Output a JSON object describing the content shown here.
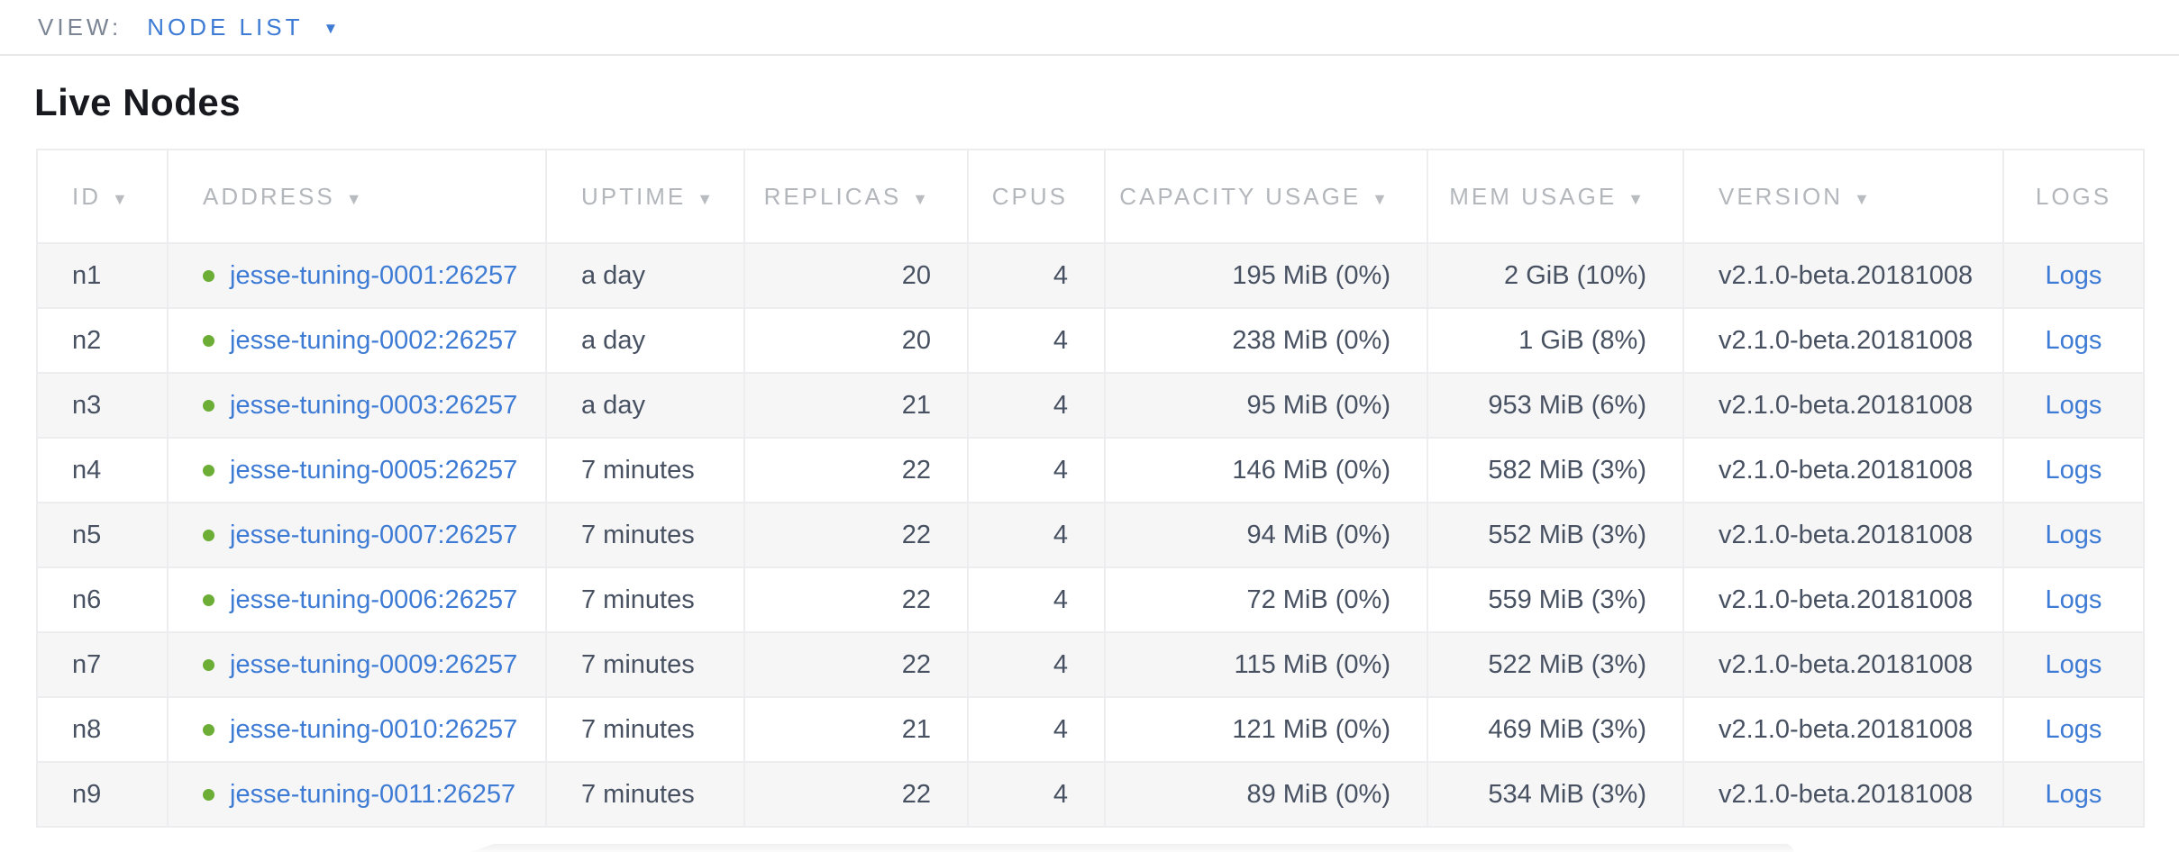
{
  "view_bar": {
    "label": "VIEW:",
    "selected": "NODE LIST"
  },
  "page": {
    "title": "Live Nodes"
  },
  "icons": {
    "caret_down": "▼",
    "sort_desc": "▼",
    "live_dot": "node-live-status"
  },
  "colors": {
    "link_blue": "#3d7bd4",
    "live_green": "#6cae35",
    "header_gray": "#b3b7bc",
    "stripe_gray": "#f6f6f7"
  },
  "table": {
    "columns": [
      {
        "key": "id",
        "label": "ID",
        "sortable": true,
        "align": "left"
      },
      {
        "key": "address",
        "label": "ADDRESS",
        "sortable": true,
        "align": "left"
      },
      {
        "key": "uptime",
        "label": "UPTIME",
        "sortable": true,
        "align": "left"
      },
      {
        "key": "replicas",
        "label": "REPLICAS",
        "sortable": true,
        "align": "right"
      },
      {
        "key": "cpus",
        "label": "CPUS",
        "sortable": false,
        "align": "right"
      },
      {
        "key": "capacity",
        "label": "CAPACITY USAGE",
        "sortable": true,
        "align": "right"
      },
      {
        "key": "mem",
        "label": "MEM USAGE",
        "sortable": true,
        "align": "right"
      },
      {
        "key": "version",
        "label": "VERSION",
        "sortable": true,
        "align": "left"
      },
      {
        "key": "logs",
        "label": "LOGS",
        "sortable": false,
        "align": "center"
      }
    ],
    "rows": [
      {
        "id": "n1",
        "address": "jesse-tuning-0001:26257",
        "uptime": "a day",
        "replicas": "20",
        "cpus": "4",
        "capacity": "195 MiB (0%)",
        "mem": "2 GiB (10%)",
        "version": "v2.1.0-beta.20181008",
        "logs": "Logs"
      },
      {
        "id": "n2",
        "address": "jesse-tuning-0002:26257",
        "uptime": "a day",
        "replicas": "20",
        "cpus": "4",
        "capacity": "238 MiB (0%)",
        "mem": "1 GiB (8%)",
        "version": "v2.1.0-beta.20181008",
        "logs": "Logs"
      },
      {
        "id": "n3",
        "address": "jesse-tuning-0003:26257",
        "uptime": "a day",
        "replicas": "21",
        "cpus": "4",
        "capacity": "95 MiB (0%)",
        "mem": "953 MiB (6%)",
        "version": "v2.1.0-beta.20181008",
        "logs": "Logs"
      },
      {
        "id": "n4",
        "address": "jesse-tuning-0005:26257",
        "uptime": "7 minutes",
        "replicas": "22",
        "cpus": "4",
        "capacity": "146 MiB (0%)",
        "mem": "582 MiB (3%)",
        "version": "v2.1.0-beta.20181008",
        "logs": "Logs"
      },
      {
        "id": "n5",
        "address": "jesse-tuning-0007:26257",
        "uptime": "7 minutes",
        "replicas": "22",
        "cpus": "4",
        "capacity": "94 MiB (0%)",
        "mem": "552 MiB (3%)",
        "version": "v2.1.0-beta.20181008",
        "logs": "Logs"
      },
      {
        "id": "n6",
        "address": "jesse-tuning-0006:26257",
        "uptime": "7 minutes",
        "replicas": "22",
        "cpus": "4",
        "capacity": "72 MiB (0%)",
        "mem": "559 MiB (3%)",
        "version": "v2.1.0-beta.20181008",
        "logs": "Logs"
      },
      {
        "id": "n7",
        "address": "jesse-tuning-0009:26257",
        "uptime": "7 minutes",
        "replicas": "22",
        "cpus": "4",
        "capacity": "115 MiB (0%)",
        "mem": "522 MiB (3%)",
        "version": "v2.1.0-beta.20181008",
        "logs": "Logs"
      },
      {
        "id": "n8",
        "address": "jesse-tuning-0010:26257",
        "uptime": "7 minutes",
        "replicas": "21",
        "cpus": "4",
        "capacity": "121 MiB (0%)",
        "mem": "469 MiB (3%)",
        "version": "v2.1.0-beta.20181008",
        "logs": "Logs"
      },
      {
        "id": "n9",
        "address": "jesse-tuning-0011:26257",
        "uptime": "7 minutes",
        "replicas": "22",
        "cpus": "4",
        "capacity": "89 MiB (0%)",
        "mem": "534 MiB (3%)",
        "version": "v2.1.0-beta.20181008",
        "logs": "Logs"
      }
    ]
  }
}
